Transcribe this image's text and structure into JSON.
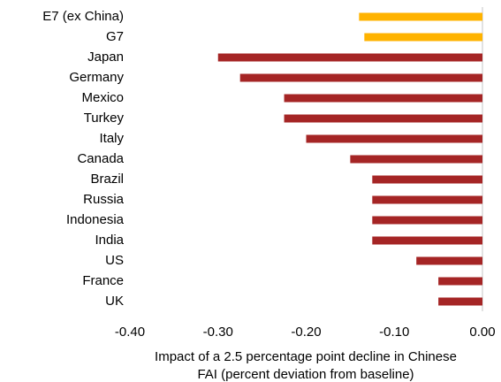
{
  "chart_data": {
    "type": "hbar",
    "categories": [
      "E7 (ex China)",
      "G7",
      "Japan",
      "Germany",
      "Mexico",
      "Turkey",
      "Italy",
      "Canada",
      "Brazil",
      "Russia",
      "Indonesia",
      "India",
      "US",
      "France",
      "UK"
    ],
    "values": [
      -0.14,
      -0.134,
      -0.3,
      -0.275,
      -0.225,
      -0.225,
      -0.2,
      -0.15,
      -0.125,
      -0.125,
      -0.125,
      -0.125,
      -0.075,
      -0.05,
      -0.05
    ],
    "colors": [
      "#ffb300",
      "#ffb300",
      "#a52525",
      "#a52525",
      "#a52525",
      "#a52525",
      "#a52525",
      "#a52525",
      "#a52525",
      "#a52525",
      "#a52525",
      "#a52525",
      "#a52525",
      "#a52525",
      "#a52525"
    ],
    "xlim": [
      -0.4,
      0
    ],
    "xticks": [
      {
        "value": -0.4,
        "label": "-0.40"
      },
      {
        "value": -0.3,
        "label": "-0.30"
      },
      {
        "value": -0.2,
        "label": "-0.20"
      },
      {
        "value": -0.1,
        "label": "-0.10"
      },
      {
        "value": 0,
        "label": "0.00"
      }
    ],
    "xlabel": [
      "Impact of a 2.5 percentage point decline in Chinese",
      "FAI (percent deviation from baseline)"
    ]
  }
}
